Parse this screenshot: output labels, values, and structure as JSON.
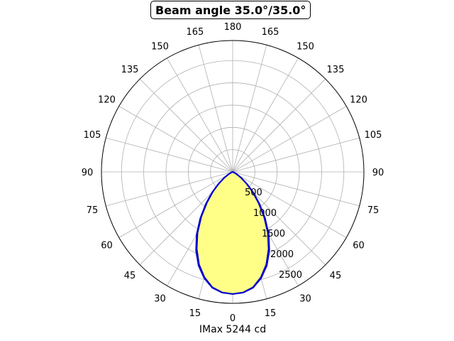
{
  "chart_data": {
    "type": "polar",
    "title": "Beam angle 35.0°/35.0°",
    "xlabel": "IMax 5244 cd",
    "angle_ticks": [
      180,
      165,
      150,
      135,
      120,
      105,
      90,
      75,
      60,
      45,
      30,
      15,
      0,
      15,
      30,
      45,
      60,
      75,
      90,
      105,
      120,
      135,
      150,
      165
    ],
    "radial_ticks": [
      500,
      1000,
      1500,
      2000,
      2500
    ],
    "rmax": 2950,
    "grid": true,
    "colors": {
      "curve": "#0000cc",
      "fill": "#ffff88",
      "grid": "#b0b0b0"
    },
    "series": [
      {
        "angles_deg": [
          0,
          5,
          10,
          15,
          20,
          25,
          30,
          35,
          40,
          45,
          50,
          55,
          60,
          65,
          70,
          75,
          80,
          85,
          90
        ],
        "values": [
          2740,
          2720,
          2640,
          2470,
          2240,
          1950,
          1620,
          1270,
          940,
          660,
          420,
          240,
          120,
          50,
          15,
          0,
          0,
          0,
          0
        ]
      },
      {
        "angles_deg": [
          0,
          5,
          10,
          15,
          20,
          25,
          30,
          35,
          40,
          45,
          50,
          55,
          60,
          65,
          70,
          75,
          80,
          85,
          90
        ],
        "values": [
          2740,
          2715,
          2630,
          2450,
          2210,
          1910,
          1580,
          1230,
          900,
          630,
          400,
          230,
          110,
          45,
          12,
          0,
          0,
          0,
          0
        ]
      }
    ]
  }
}
